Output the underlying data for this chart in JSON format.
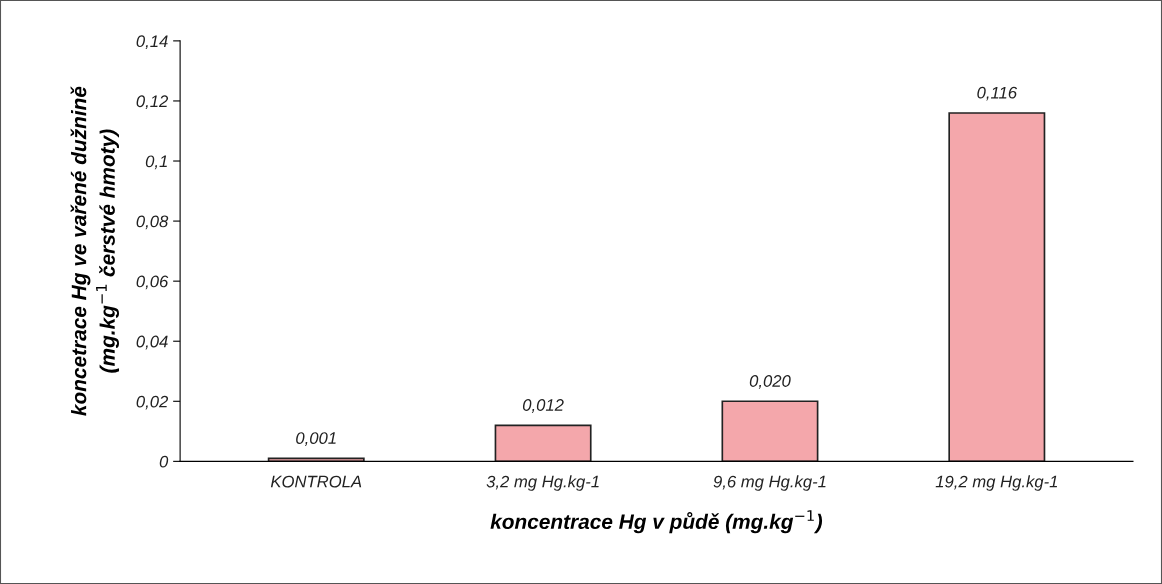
{
  "chart_data": {
    "type": "bar",
    "xlabel": "koncentrace Hg v půdě (mg.kg$^{−1}$)",
    "ylabel": "koncetrace Hg ve vařené dužnině\n(mg.kg$^{−1}$ čerstvé hmoty)",
    "categories": [
      "KONTROLA",
      "3,2 mg Hg.kg-1",
      "9,6 mg Hg.kg-1",
      "19,2 mg Hg.kg-1"
    ],
    "values": [
      0.001,
      0.012,
      0.02,
      0.116
    ],
    "value_labels": [
      "0,001",
      "0,012",
      "0,020",
      "0,116"
    ],
    "color": "#f4a7ab",
    "ylim": [
      0,
      0.14
    ],
    "yticks": [
      0,
      {
        "value": 0.02,
        "label": "0,02"
      },
      {
        "value": 0.04,
        "label": "0,04"
      },
      {
        "value": 0.06,
        "label": "0,06"
      },
      {
        "value": 0.08,
        "label": "0,08"
      },
      {
        "value": 0.1,
        "label": "0,1"
      },
      {
        "value": 0.12,
        "label": "0,12"
      },
      {
        "value": 0.14,
        "label": "0,14"
      }
    ],
    "grid": false,
    "legend": false
  }
}
